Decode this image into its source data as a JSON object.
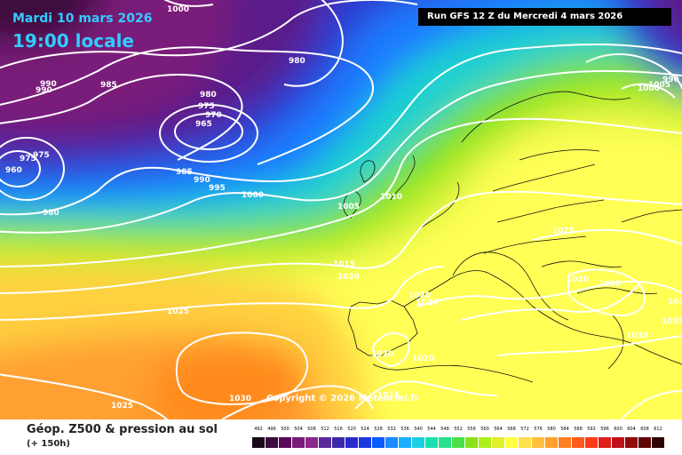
{
  "header": {
    "date": "Mardi 10 mars 2026",
    "time": "19:00 locale",
    "run": "Run GFS 12 Z du Mercredi 4 mars 2026"
  },
  "copyright": "Copyright © 2026 Meteociel.fr",
  "footer": {
    "title": "Géop. Z500 & pression au sol",
    "subtitle": "(+ 150h)"
  },
  "legend": {
    "values": [
      "492",
      "496",
      "500",
      "504",
      "508",
      "512",
      "516",
      "520",
      "524",
      "528",
      "532",
      "536",
      "540",
      "544",
      "548",
      "552",
      "556",
      "560",
      "564",
      "568",
      "572",
      "576",
      "580",
      "584",
      "588",
      "592",
      "596",
      "600",
      "604",
      "608",
      "612"
    ],
    "colors": [
      "#1a0a1a",
      "#3c0a3c",
      "#5a0a5a",
      "#7a1a7a",
      "#8a2a8a",
      "#5a2a9a",
      "#3a2aaa",
      "#2a2acc",
      "#1a3ae0",
      "#0a5aff",
      "#1a8aff",
      "#1ab0ff",
      "#1ad0e0",
      "#1ae0b0",
      "#2ae08a",
      "#4ae04a",
      "#8ae01a",
      "#b0f01a",
      "#e0f02a",
      "#ffff44",
      "#ffe04a",
      "#ffc040",
      "#ffa030",
      "#ff8020",
      "#ff5a1a",
      "#ff3a1a",
      "#e0201a",
      "#c0101a",
      "#900a0a",
      "#600505",
      "#300202"
    ]
  },
  "isobars": [
    "1000",
    "980",
    "985",
    "990",
    "990",
    "960",
    "975",
    "975",
    "980",
    "975",
    "970",
    "965",
    "985",
    "990",
    "995",
    "980",
    "1000",
    "1010",
    "1005",
    "1015",
    "1020",
    "1025",
    "1020",
    "1020",
    "1020",
    "1030",
    "1030",
    "1030",
    "1025",
    "1035",
    "1030",
    "1025",
    "1030",
    "1015",
    "1000",
    "990",
    "1005",
    "1020"
  ],
  "colors": {
    "title": "#33ccff",
    "banner_bg": "#000000",
    "contour": "#ffffff"
  }
}
